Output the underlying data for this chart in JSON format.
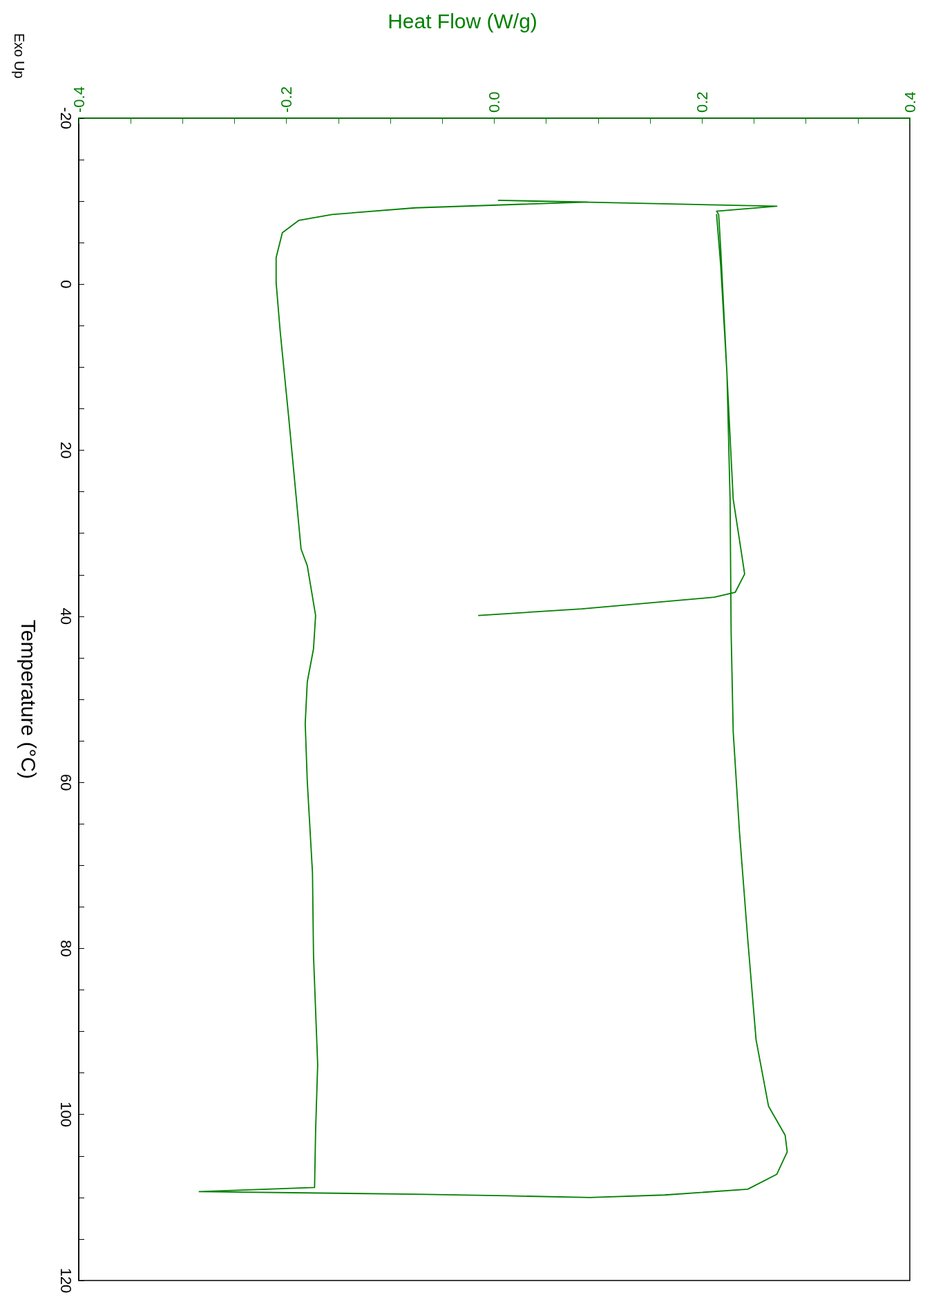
{
  "chart_data": {
    "type": "line",
    "title": "Heat Flow (W/g)",
    "ylabel": "Temperature (°C)",
    "annotations": [
      "Exo Up"
    ],
    "xlim": [
      -0.4,
      0.4
    ],
    "xticks": [
      -0.4,
      {
        "value": -0.35,
        "label": null
      },
      {
        "value": -0.3,
        "label": null
      },
      {
        "value": -0.25,
        "label": null
      },
      -0.2,
      {
        "value": -0.15,
        "label": null
      },
      {
        "value": -0.1,
        "label": null
      },
      {
        "value": -0.05,
        "label": null
      },
      {
        "value": 0,
        "label": "0.0"
      },
      {
        "value": 0.05,
        "label": null
      },
      {
        "value": 0.1,
        "label": null
      },
      {
        "value": 0.15,
        "label": null
      },
      0.2,
      {
        "value": 0.25,
        "label": null
      },
      {
        "value": 0.3,
        "label": null
      },
      {
        "value": 0.35,
        "label": null
      },
      0.4
    ],
    "ylim": [
      120,
      -20
    ],
    "yticks": [
      -20,
      {
        "value": -15,
        "label": null
      },
      {
        "value": -10,
        "label": null
      },
      {
        "value": -5,
        "label": null
      },
      0,
      {
        "value": 5,
        "label": null
      },
      {
        "value": 10,
        "label": null
      },
      {
        "value": 15,
        "label": null
      },
      20,
      {
        "value": 25,
        "label": null
      },
      {
        "value": 30,
        "label": null
      },
      {
        "value": 35,
        "label": null
      },
      40,
      {
        "value": 45,
        "label": null
      },
      {
        "value": 50,
        "label": null
      },
      {
        "value": 55,
        "label": null
      },
      60,
      {
        "value": 65,
        "label": null
      },
      {
        "value": 70,
        "label": null
      },
      {
        "value": 75,
        "label": null
      },
      80,
      {
        "value": 85,
        "label": null
      },
      {
        "value": 90,
        "label": null
      },
      {
        "value": 95,
        "label": null
      },
      100,
      {
        "value": 105,
        "label": null
      },
      {
        "value": 110,
        "label": null
      },
      {
        "value": 115,
        "label": null
      },
      120
    ],
    "line_style": "solid",
    "series": [
      {
        "color": "#008000",
        "x": [
          -0.015,
          0.084,
          0.212,
          0.232,
          0.241,
          0.238,
          0.23,
          0.226,
          0.222,
          0.218,
          0.216,
          0.214,
          0.272,
          0.084,
          0.004,
          0.09,
          -0.076,
          -0.156,
          -0.188,
          -0.204,
          -0.21,
          -0.21,
          -0.206,
          -0.198,
          -0.192,
          -0.186,
          -0.18,
          -0.172,
          -0.174,
          -0.18,
          -0.182,
          -0.18,
          -0.175,
          -0.174,
          -0.17,
          -0.172,
          -0.173,
          -0.284,
          -0.076,
          0.012,
          0.092,
          0.164,
          0.244,
          0.272,
          0.282,
          0.28,
          0.264,
          0.252,
          0.244,
          0.236,
          0.23,
          0.228,
          0.227,
          0.224,
          0.218,
          0.214
        ],
        "values": [
          39.9,
          39.1,
          37.7,
          37.1,
          34.9,
          32.4,
          25.9,
          15.9,
          5.8,
          -4.2,
          -8.4,
          -8.8,
          -9.4,
          -9.9,
          -10.1,
          -9.9,
          -9.2,
          -8.4,
          -7.7,
          -6.2,
          -3.2,
          -0.2,
          5.8,
          15.9,
          23.9,
          31.9,
          33.9,
          39.9,
          43.9,
          47.9,
          52.9,
          59.9,
          70.9,
          80.9,
          94,
          102,
          108.8,
          109.3,
          109.6,
          109.8,
          110,
          109.7,
          109,
          107.2,
          104.5,
          102.5,
          99,
          91,
          78.9,
          65.9,
          53.9,
          41.9,
          25.9,
          10.8,
          -2.2,
          -8.4
        ]
      }
    ]
  }
}
